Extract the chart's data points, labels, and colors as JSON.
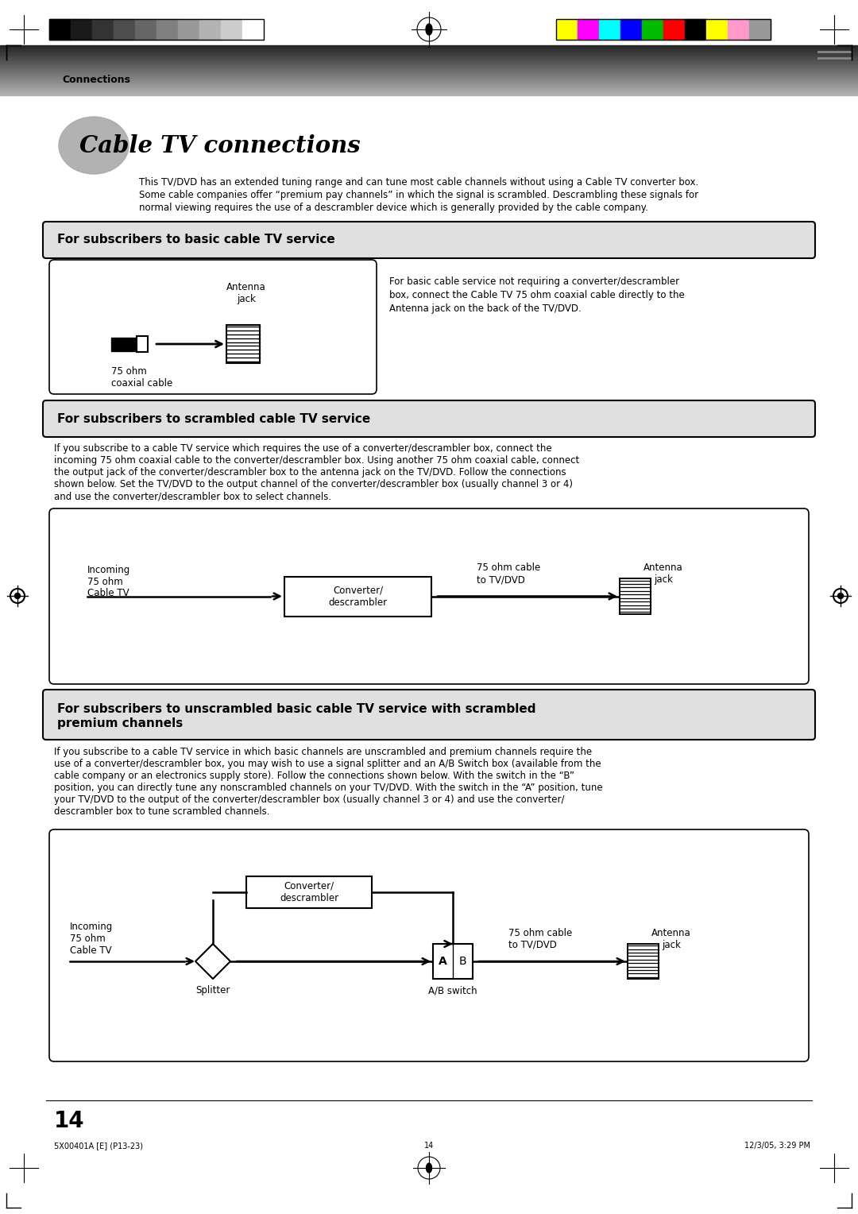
{
  "bg_color": "#ffffff",
  "title_text": "Cable TV connections",
  "connections_label": "Connections",
  "intro_text1": "This TV/DVD has an extended tuning range and can tune most cable channels without using a Cable TV converter box.",
  "intro_text2": "Some cable companies offer “premium pay channels” in which the signal is scrambled. Descrambling these signals for",
  "intro_text3": "normal viewing requires the use of a descrambler device which is generally provided by the cable company.",
  "section1_title": "For subscribers to basic cable TV service",
  "section1_desc1": "For basic cable service not requiring a converter/descrambler",
  "section1_desc2": "box, connect the Cable TV 75 ohm coaxial cable directly to the",
  "section1_desc3": "Antenna jack on the back of the TV/DVD.",
  "section1_antenna_label": "Antenna\njack",
  "section1_cable_label": "75 ohm\ncoaxial cable",
  "section2_title": "For subscribers to scrambled cable TV service",
  "section2_desc1": "If you subscribe to a cable TV service which requires the use of a converter/descrambler box, connect the",
  "section2_desc2": "incoming 75 ohm coaxial cable to the converter/descrambler box. Using another 75 ohm coaxial cable, connect",
  "section2_desc3": "the output jack of the converter/descrambler box to the antenna jack on the TV/DVD. Follow the connections",
  "section2_desc4": "shown below. Set the TV/DVD to the output channel of the converter/descrambler box (usually channel 3 or 4)",
  "section2_desc5": "and use the converter/descrambler box to select channels.",
  "section2_incoming_label": "Incoming\n75 ohm\nCable TV",
  "section2_converter_label": "Converter/\ndescrambler",
  "section2_cable_label": "75 ohm cable\nto TV/DVD",
  "section2_antenna_label": "Antenna\njack",
  "section3_title1": "For subscribers to unscrambled basic cable TV service with scrambled",
  "section3_title2": "premium channels",
  "section3_desc1": "If you subscribe to a cable TV service in which basic channels are unscrambled and premium channels require the",
  "section3_desc2": "use of a converter/descrambler box, you may wish to use a signal splitter and an A/B Switch box (available from the",
  "section3_desc3": "cable company or an electronics supply store). Follow the connections shown below. With the switch in the “B”",
  "section3_desc4": "position, you can directly tune any nonscrambled channels on your TV/DVD. With the switch in the “A” position, tune",
  "section3_desc5": "your TV/DVD to the output of the converter/descrambler box (usually channel 3 or 4) and use the converter/",
  "section3_desc6": "descrambler box to tune scrambled channels.",
  "section3_incoming_label": "Incoming\n75 ohm\nCable TV",
  "section3_splitter_label": "Splitter",
  "section3_converter_label": "Converter/\ndescrambler",
  "section3_ab_label": "A/B switch",
  "section3_cable_label": "75 ohm cable\nto TV/DVD",
  "section3_antenna_label": "Antenna\njack",
  "page_number": "14",
  "footer_left": "5X00401A [E] (P13-23)",
  "footer_center": "14",
  "footer_right": "12/3/05, 3:29 PM",
  "gs_colors": [
    "#000000",
    "#1a1a1a",
    "#333333",
    "#4d4d4d",
    "#666666",
    "#808080",
    "#999999",
    "#b3b3b3",
    "#cccccc",
    "#ffffff"
  ],
  "color_bars": [
    "#ffff00",
    "#ff00ff",
    "#00ffff",
    "#0000ff",
    "#00bb00",
    "#ff0000",
    "#000000",
    "#ffff00",
    "#ff99cc",
    "#999999"
  ]
}
